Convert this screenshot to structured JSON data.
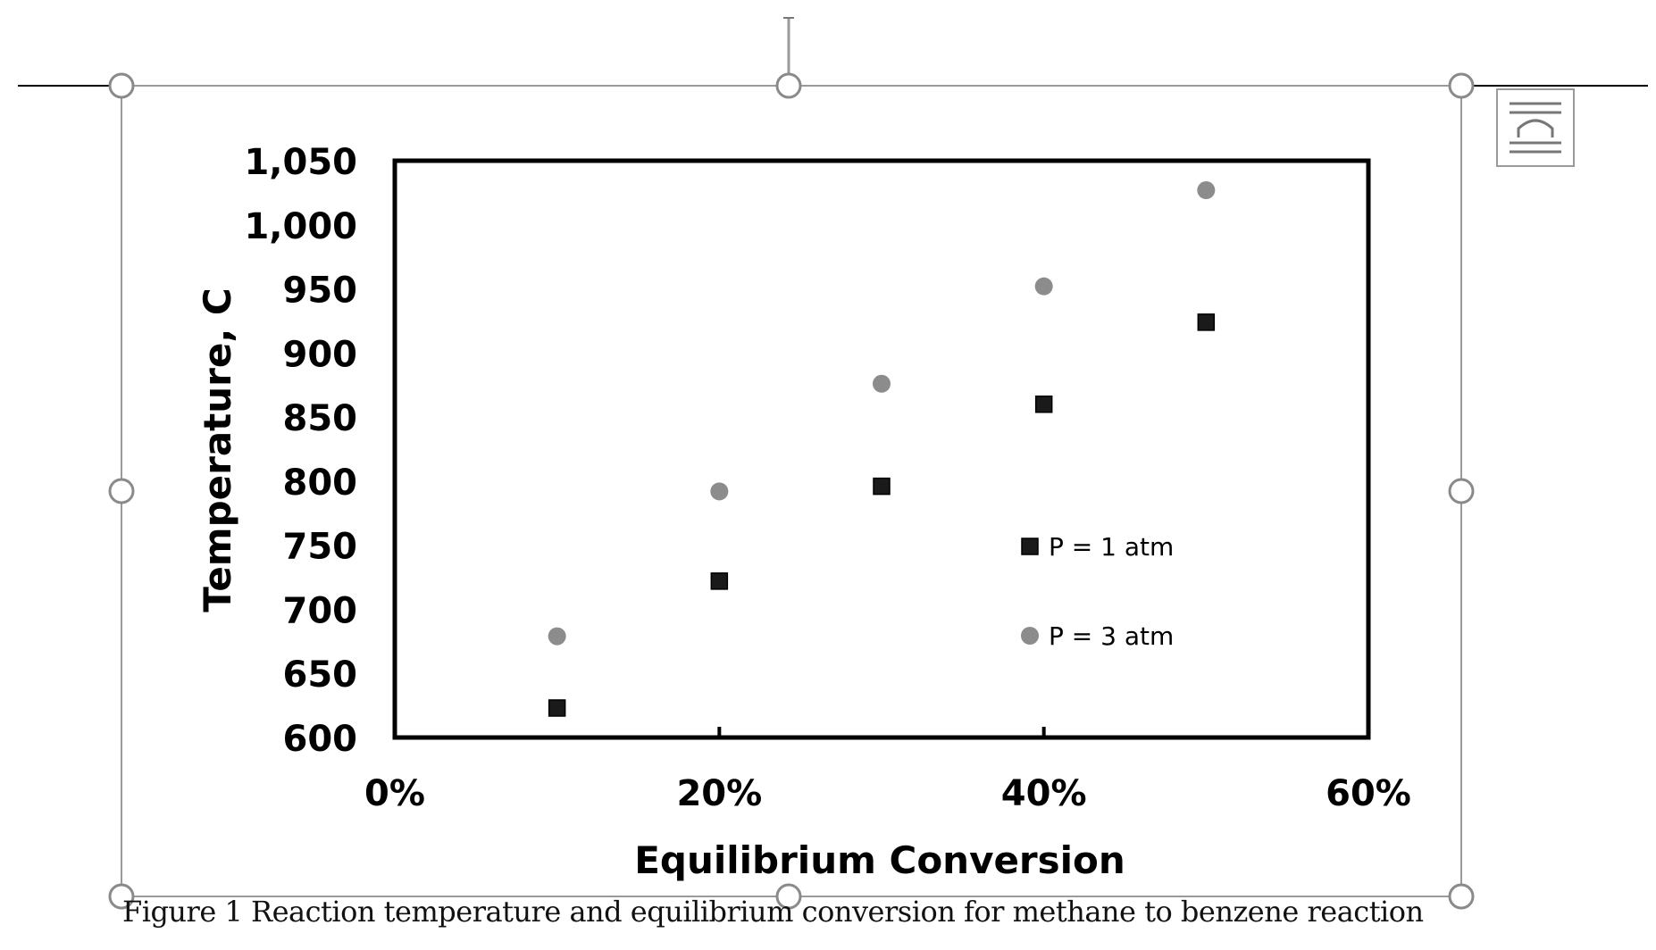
{
  "caption": "Figure 1 Reaction temperature and equilibrium conversion for methane to benzene reaction",
  "layout_options_icon": "layout-options-icon",
  "colors": {
    "series1": "#1a1a1a",
    "series2": "#8c8c8c",
    "frame": "#000000",
    "selection": "#9a9a9a"
  },
  "chart_data": {
    "type": "scatter",
    "title": "",
    "xlabel": "Equilibrium Conversion",
    "ylabel": "Temperature, C",
    "xlim": [
      0,
      0.6
    ],
    "ylim": [
      600,
      1050
    ],
    "x_ticks": [
      0,
      0.2,
      0.4,
      0.6
    ],
    "x_tick_labels": [
      "0%",
      "20%",
      "40%",
      "60%"
    ],
    "y_ticks": [
      600,
      650,
      700,
      750,
      800,
      850,
      900,
      950,
      1000,
      1050
    ],
    "y_tick_labels": [
      "600",
      "650",
      "700",
      "750",
      "800",
      "850",
      "900",
      "950",
      "1,000",
      "1,050"
    ],
    "grid": false,
    "legend_position": "inside-lower-right",
    "series": [
      {
        "name": "P = 1 atm",
        "marker": "square",
        "x": [
          0.1,
          0.2,
          0.3,
          0.4,
          0.5
        ],
        "y": [
          623,
          722,
          796,
          860,
          924
        ]
      },
      {
        "name": "P = 3 atm",
        "marker": "circle",
        "x": [
          0.1,
          0.2,
          0.3,
          0.4,
          0.5
        ],
        "y": [
          679,
          792,
          876,
          952,
          1027
        ]
      }
    ]
  }
}
